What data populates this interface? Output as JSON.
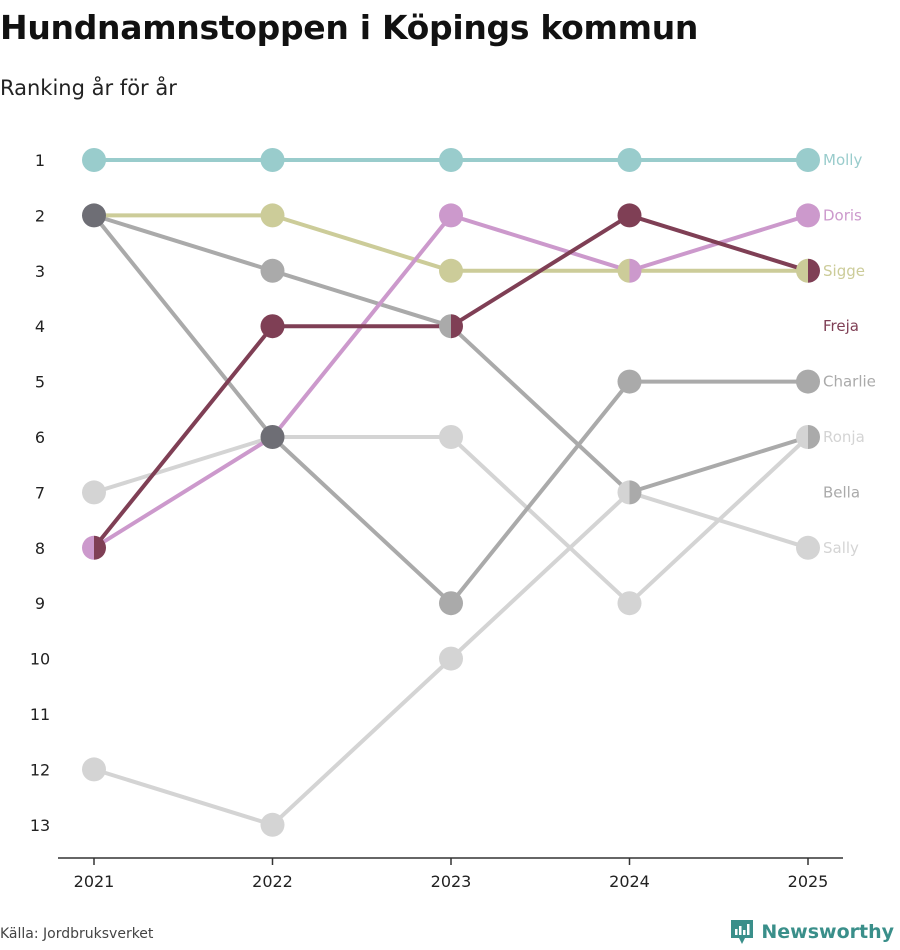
{
  "title": "Hundnamnstoppen i Köpings kommun",
  "subtitle": "Ranking år för år",
  "source": "Källa: Jordbruksverket",
  "brand": "Newsworthy",
  "brand_color": "#3a8f8a",
  "chart_data": {
    "type": "line",
    "subtype": "bump",
    "x": [
      "2021",
      "2022",
      "2023",
      "2024",
      "2025"
    ],
    "y_ticks": [
      1,
      2,
      3,
      4,
      5,
      6,
      7,
      8,
      9,
      10,
      11,
      12,
      13
    ],
    "ylim": [
      1,
      13
    ],
    "y_reversed": true,
    "series": [
      {
        "name": "Sally",
        "color": "#d4d4d4",
        "values": [
          12,
          13,
          10,
          7,
          8
        ]
      },
      {
        "name": "Bella",
        "color": "#d4d4d4",
        "values": [
          7,
          6,
          6,
          9,
          6
        ]
      },
      {
        "name": "Charlie",
        "color": "#aaaaaa",
        "values": [
          2,
          6,
          9,
          5,
          5
        ]
      },
      {
        "name": "Ronja",
        "color": "#aaaaaa",
        "values": [
          2,
          3,
          4,
          7,
          6
        ]
      },
      {
        "name": "Sigge",
        "color": "#cccc99",
        "values": [
          2,
          2,
          3,
          3,
          3
        ]
      },
      {
        "name": "Doris",
        "color": "#cc99cc",
        "values": [
          8,
          6,
          2,
          3,
          2
        ]
      },
      {
        "name": "Freja",
        "color": "#7f3f55",
        "values": [
          8,
          4,
          4,
          2,
          3
        ]
      },
      {
        "name": "Molly",
        "color": "#99cccc",
        "values": [
          1,
          1,
          1,
          1,
          1
        ]
      }
    ],
    "end_labels": [
      {
        "name": "Molly",
        "rank": 1,
        "color": "#99cccc"
      },
      {
        "name": "Doris",
        "rank": 2,
        "color": "#cc99cc"
      },
      {
        "name": "Sigge",
        "rank": 3,
        "color": "#cccc99"
      },
      {
        "name": "Freja",
        "rank": 4,
        "color": "#7f3f55"
      },
      {
        "name": "Charlie",
        "rank": 5,
        "color": "#aaaaaa"
      },
      {
        "name": "Ronja",
        "rank": 6,
        "color": "#d4d4d4"
      },
      {
        "name": "Bella",
        "rank": 7,
        "color": "#aaaaaa"
      },
      {
        "name": "Sally",
        "rank": 8,
        "color": "#d4d4d4"
      }
    ],
    "shared_marker_color": "#6e6e75"
  }
}
